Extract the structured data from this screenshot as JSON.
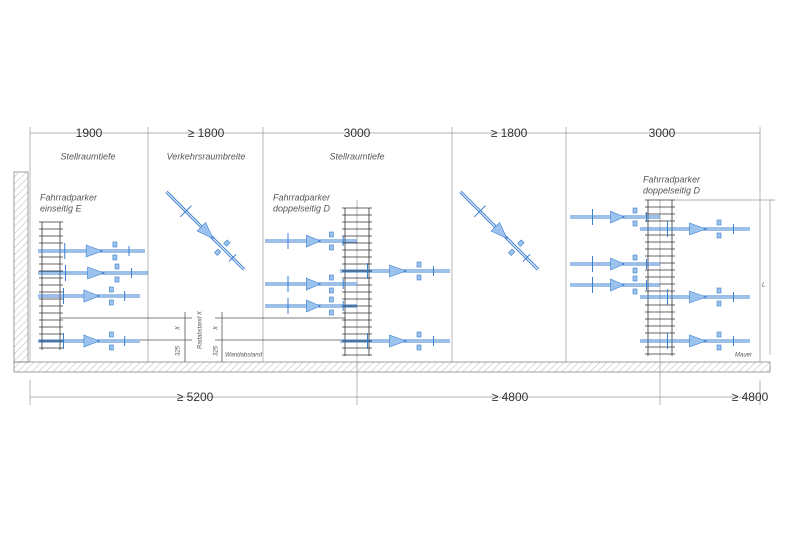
{
  "top_dimensions": [
    "1900",
    "≥ 1800",
    "3000",
    "≥ 1800",
    "3000"
  ],
  "zone_labels": [
    "Stellraumtiefe",
    "Verkehrsraumbreite",
    "Stellraumtiefe"
  ],
  "rack_labels": [
    [
      "Fahrradparker",
      "einseitig E"
    ],
    [
      "Fahrradparker",
      "doppelseitig D"
    ],
    [
      "Fahrradparker",
      "doppelseitig D"
    ]
  ],
  "annotations": {
    "x_a": "X",
    "x_b": "X",
    "d_a": "325",
    "d_b": "325",
    "wheel_spacing": "Radabstand X",
    "wall_distance": "Wandabstand",
    "wall": "Mauer",
    "length": "L"
  },
  "bottom_dimensions": [
    "≥ 5200",
    "≥ 4800",
    "≥ 4800"
  ]
}
